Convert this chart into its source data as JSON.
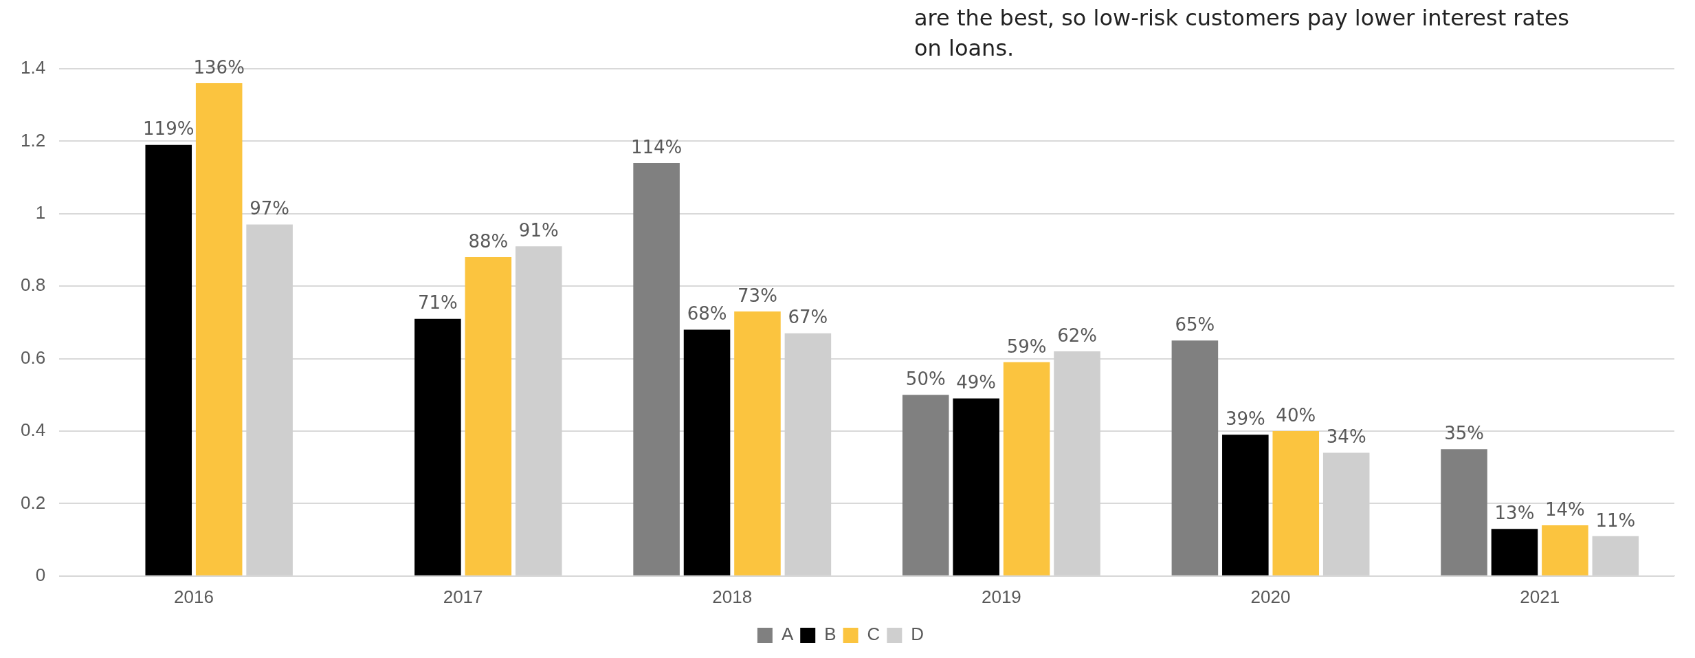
{
  "chart_data": {
    "type": "bar",
    "categories": [
      "2016",
      "2017",
      "2018",
      "2019",
      "2020",
      "2021"
    ],
    "series": [
      {
        "name": "A",
        "color": "#808080",
        "values": [
          null,
          null,
          1.14,
          0.5,
          0.65,
          0.35
        ],
        "value_labels": [
          null,
          null,
          "114%",
          "50%",
          "65%",
          "35%"
        ]
      },
      {
        "name": "B",
        "color": "#000000",
        "values": [
          1.19,
          0.71,
          0.68,
          0.49,
          0.39,
          0.13
        ],
        "value_labels": [
          "119%",
          "71%",
          "68%",
          "49%",
          "39%",
          "13%"
        ]
      },
      {
        "name": "C",
        "color": "#fbc43f",
        "values": [
          1.36,
          0.88,
          0.73,
          0.59,
          0.4,
          0.14
        ],
        "value_labels": [
          "136%",
          "88%",
          "73%",
          "59%",
          "40%",
          "14%"
        ]
      },
      {
        "name": "D",
        "color": "#cfcfcf",
        "values": [
          0.97,
          0.91,
          0.67,
          0.62,
          0.34,
          0.11
        ],
        "value_labels": [
          "97%",
          "91%",
          "67%",
          "62%",
          "34%",
          "11%"
        ]
      }
    ],
    "ylim": [
      0,
      1.4
    ],
    "yticks": [
      0,
      0.2,
      0.4,
      0.6,
      0.8,
      1,
      1.2,
      1.4
    ],
    "grid": "y",
    "legend": "bottom",
    "annotations": [
      "are the best, so low-risk customers pay lower interest rates on loans."
    ]
  }
}
